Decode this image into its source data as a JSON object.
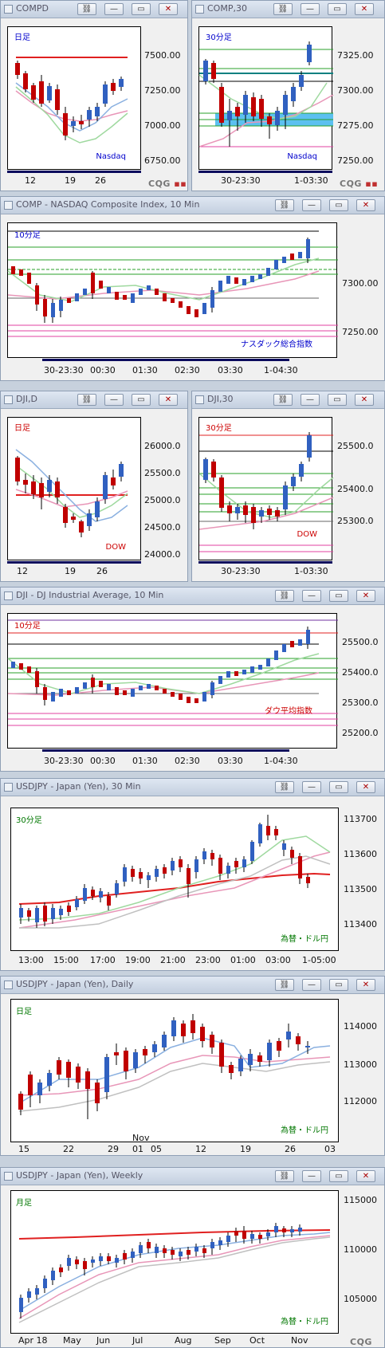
{
  "panels": [
    {
      "id": "compd",
      "title": "COMPD",
      "label": "日足",
      "label_color": "#0000cc",
      "corner": "Nasdaq",
      "corner_color": "#0000cc",
      "yticks": [
        "7500.00",
        "7250.00",
        "7000.00",
        "6750.00"
      ],
      "xticks": [
        "12",
        "19",
        "26"
      ]
    },
    {
      "id": "comp30",
      "title": "COMP,30",
      "label": "30分足",
      "label_color": "#0000cc",
      "corner": "Nasdaq",
      "corner_color": "#0000cc",
      "yticks": [
        "7325.00",
        "7300.00",
        "7275.00",
        "7250.00"
      ],
      "xticks": [
        "30-23:30",
        "1-03:30"
      ]
    },
    {
      "id": "comp10",
      "title": "COMP - NASDAQ Composite Index, 10 Min",
      "label": "10分足",
      "label_color": "#0000cc",
      "corner": "ナスダック総合指数",
      "corner_color": "#0000cc",
      "yticks": [
        "7300.00",
        "7250.00"
      ],
      "xticks": [
        "30-23:30",
        "00:30",
        "01:30",
        "02:30",
        "03:30",
        "1-04:30"
      ]
    },
    {
      "id": "djid",
      "title": "DJI,D",
      "label": "日足",
      "label_color": "#cc0000",
      "corner": "DOW",
      "corner_color": "#cc0000",
      "yticks": [
        "26000.0",
        "25500.0",
        "25000.0",
        "24500.0",
        "24000.0"
      ],
      "xticks": [
        "12",
        "19",
        "26"
      ]
    },
    {
      "id": "dji30",
      "title": "DJI,30",
      "label": "30分足",
      "label_color": "#cc0000",
      "corner": "DOW",
      "corner_color": "#cc0000",
      "yticks": [
        "25500.0",
        "25400.0",
        "25300.0"
      ],
      "xticks": [
        "30-23:30",
        "1-03:30"
      ]
    },
    {
      "id": "dji10",
      "title": "DJI - DJ Industrial Average, 10 Min",
      "label": "10分足",
      "label_color": "#cc0000",
      "corner": "ダウ平均指数",
      "corner_color": "#cc0000",
      "yticks": [
        "25500.0",
        "25400.0",
        "25300.0",
        "25200.0"
      ],
      "xticks": [
        "30-23:30",
        "00:30",
        "01:30",
        "02:30",
        "03:30",
        "1-04:30"
      ]
    },
    {
      "id": "usd30",
      "title": "USDJPY - Japan (Yen), 30 Min",
      "label": "30分足",
      "label_color": "#007700",
      "corner": "為替・ドル円",
      "corner_color": "#007700",
      "yticks": [
        "113700",
        "113600",
        "113500",
        "113400"
      ],
      "xticks": [
        "13:00",
        "15:00",
        "17:00",
        "19:00",
        "21:00",
        "23:00",
        "01:00",
        "03:00",
        "1-05:00"
      ]
    },
    {
      "id": "usdd",
      "title": "USDJPY - Japan (Yen), Daily",
      "label": "日足",
      "label_color": "#007700",
      "corner": "為替・ドル円",
      "corner_color": "#007700",
      "yticks": [
        "114000",
        "113000",
        "112000"
      ],
      "xticks": [
        "15",
        "22",
        "29",
        "01",
        "05",
        "12",
        "19",
        "26",
        "03"
      ],
      "xextra": "Nov"
    },
    {
      "id": "usdw",
      "title": "USDJPY - Japan (Yen), Weekly",
      "label": "月足",
      "label_color": "#007700",
      "corner": "為替・ドル円",
      "corner_color": "#007700",
      "yticks": [
        "115000",
        "110000",
        "105000"
      ],
      "xticks": [
        "Apr 18",
        "May",
        "Jun",
        "Jul",
        "Aug",
        "Sep",
        "Oct",
        "Nov"
      ]
    }
  ],
  "buttons": {
    "link": "⛓",
    "min": "—",
    "restore": "▭",
    "close": "✕"
  },
  "brand": {
    "a": "CQG",
    "b": "▪▪"
  }
}
